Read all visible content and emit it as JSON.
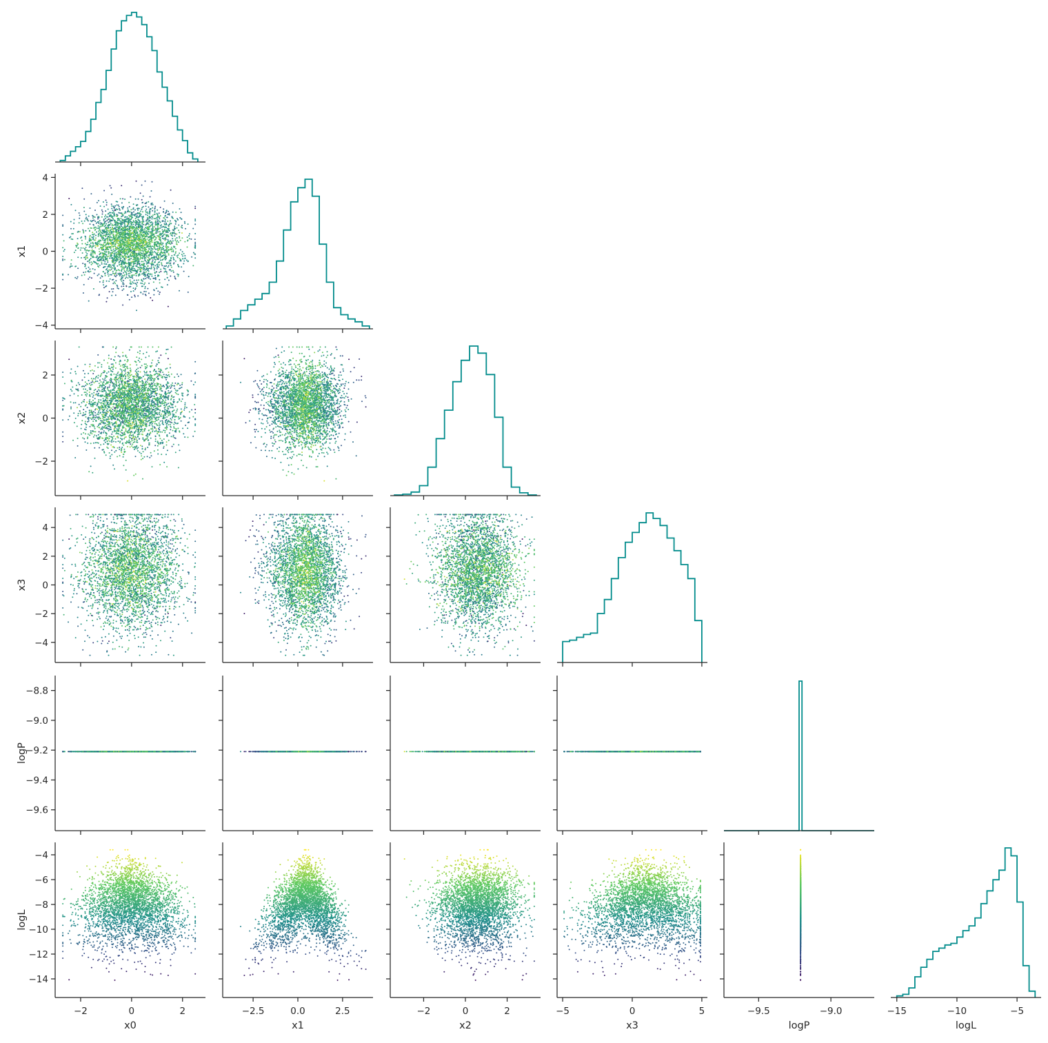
{
  "chart_data": {
    "type": "corner",
    "variables": [
      "x0",
      "x1",
      "x2",
      "x3",
      "logP",
      "logL"
    ],
    "xlabels": [
      "x0",
      "x1",
      "x2",
      "x3",
      "logP",
      "logL"
    ],
    "ylabels": [
      "x1",
      "x2",
      "x3",
      "logP",
      "logL"
    ],
    "axis_ticks": {
      "x0": [
        -2,
        0,
        2
      ],
      "x1": [
        -2.5,
        0.0,
        2.5
      ],
      "x2": [
        -2,
        0,
        2
      ],
      "x3": [
        -5,
        0,
        5
      ],
      "logP": [
        -9.5,
        -9.0
      ],
      "logL": [
        -15,
        -10,
        -5
      ]
    },
    "axis_tick_labels": {
      "x0": [
        "−2",
        "0",
        "2"
      ],
      "x1": [
        "−2.5",
        "0.0",
        "2.5"
      ],
      "x2": [
        "−2",
        "0",
        "2"
      ],
      "x3": [
        "−5",
        "0",
        "5"
      ],
      "logP": [
        "−9.5",
        "−9.0"
      ],
      "logL": [
        "−15",
        "−10",
        "−5"
      ]
    },
    "row_ticks": {
      "x1": [
        -4,
        -2,
        0,
        2,
        4
      ],
      "x2": [
        -2,
        0,
        2
      ],
      "x3": [
        -4,
        -2,
        0,
        2,
        4
      ],
      "logP": [
        -9.6,
        -9.4,
        -9.2,
        -9.0,
        -8.8
      ],
      "logL": [
        -14,
        -12,
        -10,
        -8,
        -6,
        -4
      ]
    },
    "row_tick_labels": {
      "x1": [
        "−4",
        "−2",
        "0",
        "2",
        "4"
      ],
      "x2": [
        "−2",
        "0",
        "2"
      ],
      "x3": [
        "−4",
        "−2",
        "0",
        "2",
        "4"
      ],
      "logP": [
        "−9.6",
        "−9.4",
        "−9.2",
        "−9.0",
        "−8.8"
      ],
      "logL": [
        "−14",
        "−12",
        "−10",
        "−8",
        "−6",
        "−4"
      ]
    },
    "axis_ranges": {
      "x0": [
        -3.0,
        2.9
      ],
      "x1": [
        -4.2,
        4.2
      ],
      "x2": [
        -3.6,
        3.6
      ],
      "x3": [
        -5.4,
        5.4
      ],
      "logP": [
        -9.74,
        -8.7
      ],
      "logL": [
        -15.5,
        -3.0
      ]
    },
    "logP_value": -9.21,
    "histograms": {
      "x0": {
        "bin_edges": [
          -2.8,
          -2.6,
          -2.4,
          -2.2,
          -2.0,
          -1.8,
          -1.6,
          -1.4,
          -1.2,
          -1.0,
          -0.8,
          -0.6,
          -0.4,
          -0.2,
          0.0,
          0.2,
          0.4,
          0.6,
          0.8,
          1.0,
          1.2,
          1.4,
          1.6,
          1.8,
          2.0,
          2.2,
          2.4,
          2.6
        ],
        "counts": [
          2,
          8,
          14,
          20,
          27,
          40,
          56,
          78,
          95,
          120,
          148,
          172,
          185,
          192,
          196,
          190,
          180,
          164,
          146,
          118,
          98,
          80,
          60,
          42,
          28,
          12,
          4
        ]
      },
      "x1": {
        "bin_edges": [
          -4.0,
          -3.6,
          -3.2,
          -2.8,
          -2.4,
          -2.0,
          -1.6,
          -1.2,
          -0.8,
          -0.4,
          0.0,
          0.4,
          0.8,
          1.2,
          1.6,
          2.0,
          2.4,
          2.8,
          3.2,
          3.6,
          4.0
        ],
        "counts": [
          4,
          14,
          26,
          34,
          42,
          50,
          66,
          96,
          140,
          180,
          200,
          212,
          188,
          120,
          66,
          30,
          20,
          14,
          10,
          4
        ]
      },
      "x2": {
        "bin_edges": [
          -3.4,
          -3.0,
          -2.6,
          -2.2,
          -1.8,
          -1.4,
          -1.0,
          -0.6,
          -0.2,
          0.2,
          0.6,
          1.0,
          1.4,
          1.8,
          2.2,
          2.6,
          3.0,
          3.4
        ],
        "counts": [
          1,
          2,
          5,
          14,
          40,
          80,
          120,
          160,
          190,
          210,
          200,
          170,
          110,
          40,
          12,
          4,
          1
        ]
      },
      "x3": {
        "bin_edges": [
          -5.0,
          -4.5,
          -4.0,
          -3.5,
          -3.0,
          -2.5,
          -2.0,
          -1.5,
          -1.0,
          -0.5,
          0.0,
          0.5,
          1.0,
          1.5,
          2.0,
          2.5,
          3.0,
          3.5,
          4.0,
          4.5,
          5.0
        ],
        "counts": [
          30,
          32,
          36,
          40,
          42,
          70,
          90,
          120,
          150,
          172,
          186,
          200,
          214,
          206,
          196,
          178,
          160,
          140,
          120,
          60
        ]
      },
      "logP": {
        "bin_edges": [
          -9.74,
          -9.22,
          -9.2,
          -8.7
        ],
        "counts": [
          0,
          1,
          0
        ]
      },
      "logL": {
        "bin_edges": [
          -15.0,
          -14.5,
          -14.0,
          -13.5,
          -13.0,
          -12.5,
          -12.0,
          -11.5,
          -11.0,
          -10.5,
          -10.0,
          -9.5,
          -9.0,
          -8.5,
          -8.0,
          -7.5,
          -7.0,
          -6.5,
          -6.0,
          -5.5,
          -5.0,
          -4.5,
          -4.0,
          -3.5
        ],
        "counts": [
          2,
          4,
          12,
          26,
          38,
          48,
          58,
          62,
          66,
          68,
          76,
          84,
          90,
          100,
          118,
          134,
          148,
          160,
          188,
          178,
          120,
          40,
          8
        ]
      }
    },
    "scatter": {
      "n_points_per_panel": 3200,
      "color_variable": "logL",
      "colormap": "viridis"
    },
    "histogram_color": "#008b8b",
    "colors": {
      "viridis_low": "#440154",
      "viridis_mid": "#21918c",
      "viridis_high": "#fde725",
      "axis": "#262626"
    }
  }
}
